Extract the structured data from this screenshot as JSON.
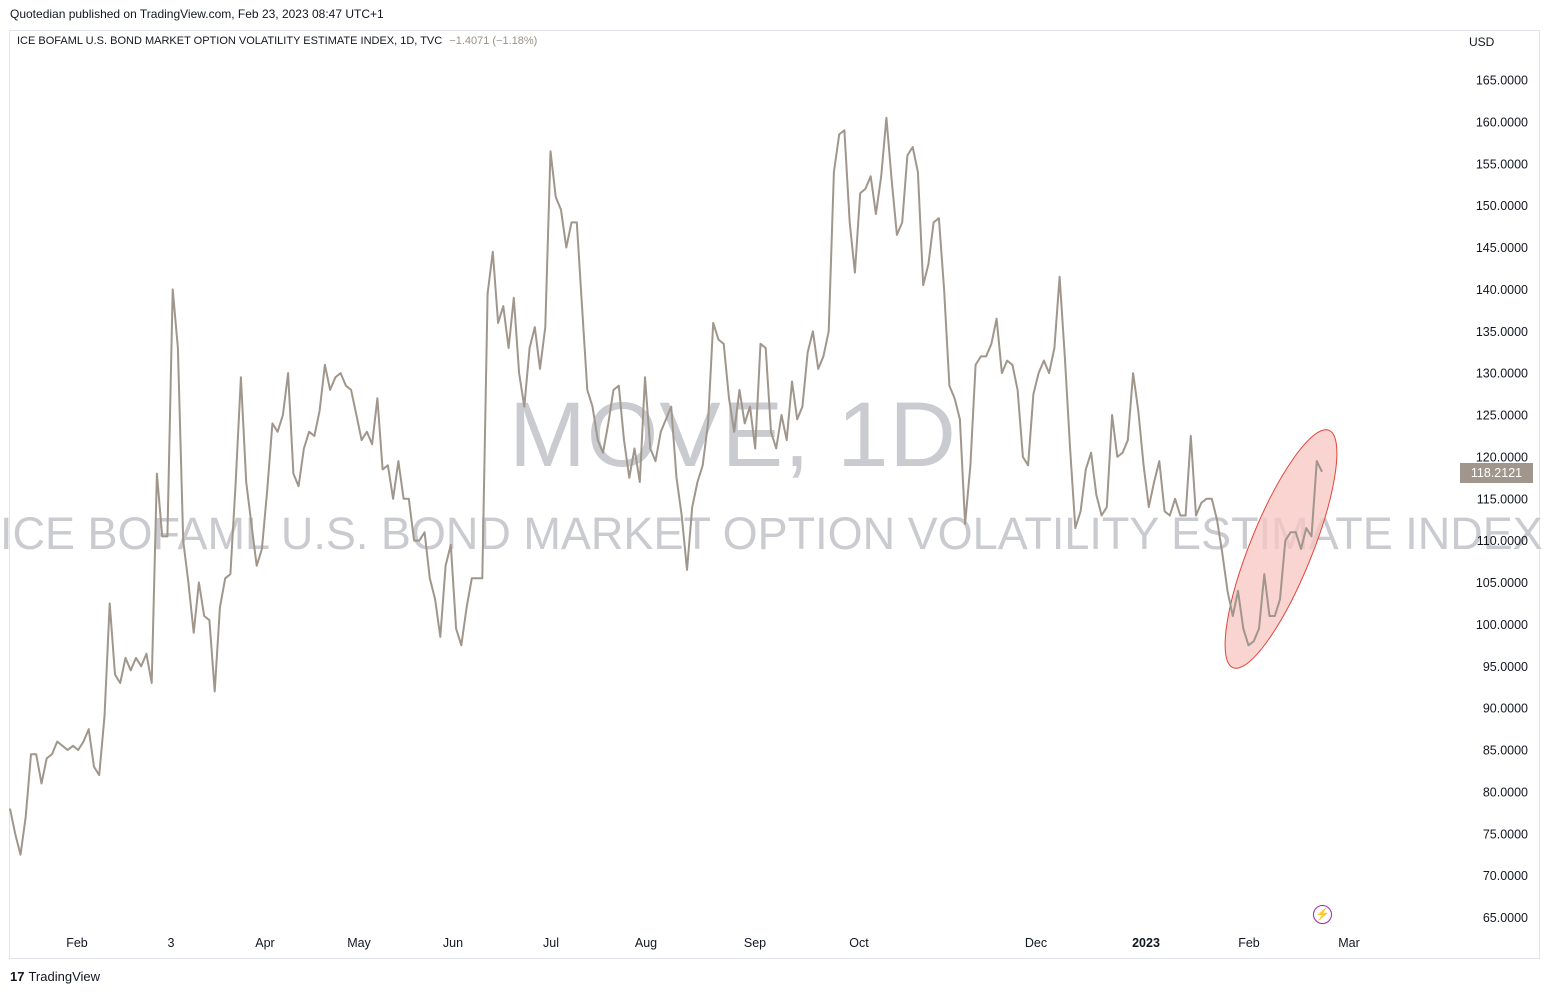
{
  "header": {
    "publisher": "Quotedian published on TradingView.com, Feb 23, 2023 08:47 UTC+1"
  },
  "legend": {
    "symbol": "ICE BOFAML U.S. BOND MARKET OPTION VOLATILITY ESTIMATE INDEX, 1D, TVC",
    "change": "−1.4071 (−1.18%)"
  },
  "axis": {
    "currency": "USD"
  },
  "watermark": {
    "ticker": "MOVE, 1D",
    "name": "ICE BOFAML U.S. BOND MARKET OPTION VOLATILITY ESTIMATE INDEX"
  },
  "last_price": "118.2121",
  "footer": {
    "logo_mark": "17",
    "logo_text": "TradingView"
  },
  "icons": {
    "alert": "lightning-icon",
    "logo": "tradingview-logo-icon"
  },
  "colors": {
    "line": "#a0968b",
    "highlight_fill": "#f7c6c1",
    "highlight_stroke": "#e0443a",
    "alert": "#9c27b0"
  },
  "chart_data": {
    "type": "line",
    "series": [
      {
        "values": [
          78,
          75,
          72.5,
          77,
          84.5,
          84.5,
          81,
          84,
          84.5,
          86,
          85.5,
          85,
          85.5,
          85,
          86,
          87.5,
          83,
          82,
          89,
          102.5,
          94,
          93,
          96,
          94.5,
          96,
          95,
          96.5,
          93,
          118,
          110.5,
          110.5,
          140,
          133,
          110,
          105,
          99,
          105,
          101,
          100.5,
          92,
          102,
          105.5,
          106,
          117,
          129.5,
          117,
          112,
          107,
          109,
          116,
          124,
          123,
          125,
          130,
          118,
          116.5,
          121,
          123,
          122.5,
          125.5,
          131,
          128,
          129.5,
          130,
          128.5,
          128,
          125,
          122,
          123,
          121.5,
          127,
          118.5,
          119,
          115,
          119.5,
          115,
          115,
          110,
          110,
          111,
          105.5,
          103,
          98.5,
          107,
          109.5,
          99.5,
          97.5,
          102,
          105.5,
          105.5,
          105.5,
          139.5,
          144.5,
          136,
          138,
          133,
          139,
          130,
          126,
          133,
          135.5,
          130.5,
          135.5,
          156.5,
          151,
          149.5,
          145,
          148,
          148,
          138,
          128,
          126,
          122,
          120.5,
          124,
          128,
          128.5,
          122,
          117.5,
          121,
          117,
          129.5,
          121,
          119.5,
          123,
          124.5,
          126,
          117.5,
          113,
          106.5,
          114,
          117,
          119,
          124,
          136,
          134,
          133.5,
          127,
          123,
          128,
          124,
          126,
          121,
          133.5,
          133,
          123,
          121,
          125,
          122,
          129,
          124.5,
          126,
          132.5,
          135,
          130.5,
          132,
          135,
          154,
          158.5,
          159,
          148,
          142,
          151.5,
          152,
          153.5,
          149,
          153.5,
          160.5,
          153,
          146.5,
          148,
          156,
          157,
          154,
          140.5,
          143,
          148,
          148.5,
          140,
          128.5,
          127,
          124.5,
          112,
          119,
          131,
          132,
          132,
          133.5,
          136.5,
          130,
          131.5,
          131,
          128,
          120,
          119,
          127.5,
          130,
          131.5,
          130,
          133,
          141.5,
          132,
          121,
          111.5,
          113.5,
          118.5,
          120.5,
          115.5,
          113,
          114,
          125,
          120,
          120.5,
          122,
          130,
          125.5,
          119,
          114,
          117,
          119.5,
          113.5,
          113,
          115,
          113,
          113,
          122.5,
          113,
          114.5,
          115,
          115,
          112.5,
          108.5,
          104,
          101,
          104,
          99.5,
          97.5,
          98,
          99.5,
          106,
          101,
          101,
          103,
          110,
          111,
          111,
          109,
          111.5,
          110.5,
          119.5,
          118.2121
        ]
      }
    ],
    "x_labels": [
      "Feb",
      "3",
      "Apr",
      "May",
      "Jun",
      "Jul",
      "Aug",
      "Sep",
      "Oct",
      "Dec",
      "2023",
      "Feb",
      "Mar"
    ],
    "bold_x_labels": [
      "2023"
    ],
    "y_ticks": [
      "65.0000",
      "70.0000",
      "75.0000",
      "80.0000",
      "85.0000",
      "90.0000",
      "95.0000",
      "100.0000",
      "105.0000",
      "110.0000",
      "115.0000",
      "120.0000",
      "125.0000",
      "130.0000",
      "135.0000",
      "140.0000",
      "145.0000",
      "150.0000",
      "155.0000",
      "160.0000",
      "165.0000"
    ],
    "ylim": [
      62.5,
      168
    ],
    "grid": false,
    "annotation": {
      "type": "ellipse",
      "x_range": [
        "Feb 2023",
        "Feb 2023"
      ],
      "y_range": [
        94.5,
        123.5
      ]
    }
  }
}
